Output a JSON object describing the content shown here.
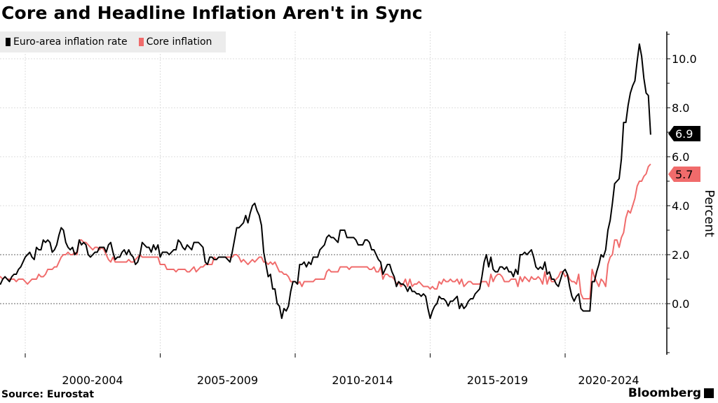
{
  "title": "Core and Headline Inflation Aren't in Sync",
  "source": "Source: Eurostat",
  "logo": "Bloomberg",
  "chart_data": {
    "type": "line",
    "title": "Core and Headline Inflation Aren't in Sync",
    "ylabel": "Percent",
    "ylim": [
      -2,
      11
    ],
    "yticks": [
      "10.0",
      "8.0",
      "6.0",
      "4.0",
      "2.0",
      "0.0"
    ],
    "xtick_labels": [
      "2000-2004",
      "2005-2009",
      "2010-2014",
      "2015-2019",
      "2020-2024"
    ],
    "x_start": "1999-01",
    "x_frequency": "monthly",
    "grid": true,
    "legend_position": "top-left",
    "series": [
      {
        "name": "Euro-area inflation rate",
        "color": "#000000",
        "last_label": "6.9",
        "values": [
          0.8,
          0.8,
          1.0,
          1.1,
          1.0,
          0.9,
          1.1,
          1.2,
          1.2,
          1.4,
          1.5,
          1.7,
          1.9,
          2.0,
          2.1,
          1.9,
          1.8,
          2.3,
          2.2,
          2.2,
          2.6,
          2.5,
          2.6,
          2.5,
          2.1,
          2.2,
          2.4,
          2.8,
          3.1,
          3.0,
          2.5,
          2.3,
          2.2,
          2.3,
          2.0,
          2.1,
          2.6,
          2.4,
          2.5,
          2.4,
          2.0,
          1.9,
          2.0,
          2.1,
          2.1,
          2.3,
          2.3,
          2.3,
          2.1,
          2.4,
          2.5,
          2.1,
          1.8,
          1.9,
          1.9,
          2.1,
          2.2,
          2.0,
          2.2,
          2.0,
          1.9,
          1.6,
          1.7,
          2.0,
          2.5,
          2.4,
          2.3,
          2.3,
          2.1,
          2.4,
          2.2,
          2.4,
          1.9,
          2.1,
          2.1,
          2.1,
          2.0,
          2.1,
          2.2,
          2.2,
          2.6,
          2.5,
          2.3,
          2.2,
          2.4,
          2.3,
          2.2,
          2.5,
          2.5,
          2.5,
          2.4,
          2.3,
          1.7,
          1.6,
          1.9,
          1.9,
          1.8,
          1.8,
          1.9,
          1.9,
          1.9,
          1.9,
          1.8,
          1.7,
          2.1,
          2.6,
          3.1,
          3.1,
          3.2,
          3.3,
          3.6,
          3.3,
          3.7,
          4.0,
          4.1,
          3.8,
          3.6,
          3.2,
          2.1,
          1.6,
          1.1,
          1.2,
          0.6,
          0.6,
          0.0,
          -0.1,
          -0.6,
          -0.2,
          -0.3,
          -0.1,
          0.5,
          0.9,
          0.9,
          0.8,
          1.6,
          1.6,
          1.7,
          1.5,
          1.7,
          1.6,
          1.9,
          1.9,
          1.9,
          2.2,
          2.3,
          2.4,
          2.7,
          2.8,
          2.7,
          2.7,
          2.6,
          2.5,
          3.0,
          3.0,
          3.0,
          2.7,
          2.7,
          2.7,
          2.7,
          2.6,
          2.4,
          2.4,
          2.4,
          2.6,
          2.6,
          2.5,
          2.2,
          2.2,
          2.0,
          1.8,
          1.7,
          1.2,
          1.4,
          1.6,
          1.6,
          1.3,
          1.1,
          0.7,
          0.9,
          0.8,
          0.8,
          0.7,
          0.5,
          0.7,
          0.5,
          0.5,
          0.4,
          0.4,
          0.3,
          0.4,
          0.3,
          -0.2,
          -0.6,
          -0.3,
          -0.1,
          0.0,
          0.3,
          0.2,
          0.2,
          0.1,
          -0.1,
          0.1,
          0.1,
          0.2,
          0.3,
          -0.2,
          0.0,
          -0.2,
          -0.1,
          0.1,
          0.2,
          0.2,
          0.4,
          0.5,
          0.6,
          1.1,
          1.7,
          2.0,
          1.5,
          1.9,
          1.4,
          1.3,
          1.3,
          1.5,
          1.5,
          1.4,
          1.5,
          1.3,
          1.3,
          1.1,
          1.4,
          1.2,
          2.0,
          2.0,
          2.1,
          2.0,
          2.1,
          2.2,
          1.9,
          1.5,
          1.4,
          1.5,
          1.4,
          1.7,
          1.2,
          1.3,
          1.0,
          1.0,
          0.8,
          0.7,
          1.0,
          1.3,
          1.4,
          1.2,
          0.7,
          0.3,
          0.1,
          0.3,
          0.4,
          -0.2,
          -0.3,
          -0.3,
          -0.3,
          -0.3,
          0.9,
          0.9,
          1.3,
          1.6,
          2.0,
          1.9,
          2.2,
          3.0,
          3.4,
          4.1,
          4.9,
          5.0,
          5.1,
          5.9,
          7.4,
          7.4,
          8.1,
          8.6,
          8.9,
          9.1,
          9.9,
          10.6,
          10.1,
          9.2,
          8.6,
          8.5,
          6.9
        ]
      },
      {
        "name": "Core inflation",
        "color": "#f06b6b",
        "last_label": "5.7",
        "values": [
          1.1,
          1.1,
          1.0,
          1.1,
          1.0,
          1.0,
          1.0,
          1.0,
          0.9,
          1.0,
          1.0,
          1.0,
          0.9,
          0.8,
          0.9,
          1.0,
          1.0,
          1.0,
          1.2,
          1.1,
          1.1,
          1.2,
          1.4,
          1.4,
          1.4,
          1.5,
          1.5,
          1.7,
          1.9,
          2.0,
          2.0,
          2.1,
          2.0,
          2.0,
          2.1,
          2.0,
          2.6,
          2.6,
          2.5,
          2.5,
          2.4,
          2.3,
          2.2,
          2.3,
          2.3,
          2.2,
          2.3,
          2.2,
          2.0,
          1.8,
          1.7,
          1.9,
          1.7,
          1.7,
          1.7,
          1.7,
          1.7,
          1.7,
          1.8,
          1.7,
          1.7,
          1.8,
          1.9,
          2.0,
          1.9,
          1.9,
          1.9,
          1.9,
          1.9,
          1.9,
          1.9,
          1.9,
          1.6,
          1.6,
          1.6,
          1.4,
          1.4,
          1.4,
          1.4,
          1.3,
          1.4,
          1.4,
          1.4,
          1.4,
          1.3,
          1.3,
          1.4,
          1.5,
          1.3,
          1.4,
          1.5,
          1.5,
          1.6,
          1.6,
          1.6,
          1.6,
          1.9,
          1.8,
          1.9,
          1.9,
          1.9,
          1.9,
          1.9,
          1.9,
          1.9,
          2.0,
          2.0,
          1.9,
          1.7,
          1.8,
          1.7,
          1.6,
          1.7,
          1.8,
          1.7,
          1.8,
          1.9,
          1.9,
          1.7,
          1.7,
          1.6,
          1.7,
          1.6,
          1.7,
          1.5,
          1.3,
          1.3,
          1.2,
          1.2,
          1.1,
          0.9,
          0.9,
          0.9,
          0.8,
          0.9,
          0.7,
          0.9,
          0.9,
          0.9,
          0.9,
          0.9,
          1.0,
          1.0,
          1.0,
          1.0,
          1.0,
          1.3,
          1.4,
          1.3,
          1.3,
          1.3,
          1.3,
          1.5,
          1.5,
          1.5,
          1.5,
          1.4,
          1.5,
          1.5,
          1.5,
          1.5,
          1.5,
          1.5,
          1.5,
          1.5,
          1.4,
          1.4,
          1.5,
          1.3,
          1.3,
          1.5,
          1.0,
          1.2,
          1.2,
          1.1,
          1.1,
          1.0,
          0.8,
          0.9,
          0.7,
          0.8,
          1.0,
          0.7,
          1.0,
          0.7,
          0.8,
          0.8,
          0.9,
          0.8,
          0.7,
          0.7,
          0.7,
          0.6,
          0.7,
          0.6,
          0.6,
          0.9,
          0.8,
          1.0,
          0.9,
          0.9,
          1.0,
          0.9,
          0.9,
          1.0,
          0.8,
          1.0,
          0.7,
          0.8,
          0.9,
          0.9,
          0.8,
          0.8,
          0.8,
          0.8,
          0.9,
          0.9,
          0.9,
          0.7,
          1.2,
          0.9,
          1.1,
          1.2,
          1.2,
          1.1,
          0.9,
          0.9,
          0.9,
          1.0,
          1.0,
          1.0,
          0.7,
          1.1,
          0.9,
          1.1,
          1.0,
          0.9,
          1.1,
          1.0,
          1.0,
          1.1,
          1.0,
          0.8,
          1.3,
          0.8,
          1.1,
          0.9,
          0.9,
          1.0,
          1.1,
          1.3,
          1.3,
          1.1,
          1.2,
          1.0,
          0.9,
          0.9,
          0.8,
          1.2,
          0.4,
          0.2,
          0.2,
          0.2,
          0.2,
          1.4,
          1.1,
          0.9,
          0.7,
          1.0,
          0.9,
          0.7,
          1.6,
          1.9,
          2.0,
          2.6,
          2.6,
          2.3,
          2.7,
          2.9,
          3.5,
          3.8,
          3.7,
          4.0,
          4.3,
          4.8,
          5.0,
          5.0,
          5.2,
          5.3,
          5.6,
          5.7
        ]
      }
    ]
  }
}
